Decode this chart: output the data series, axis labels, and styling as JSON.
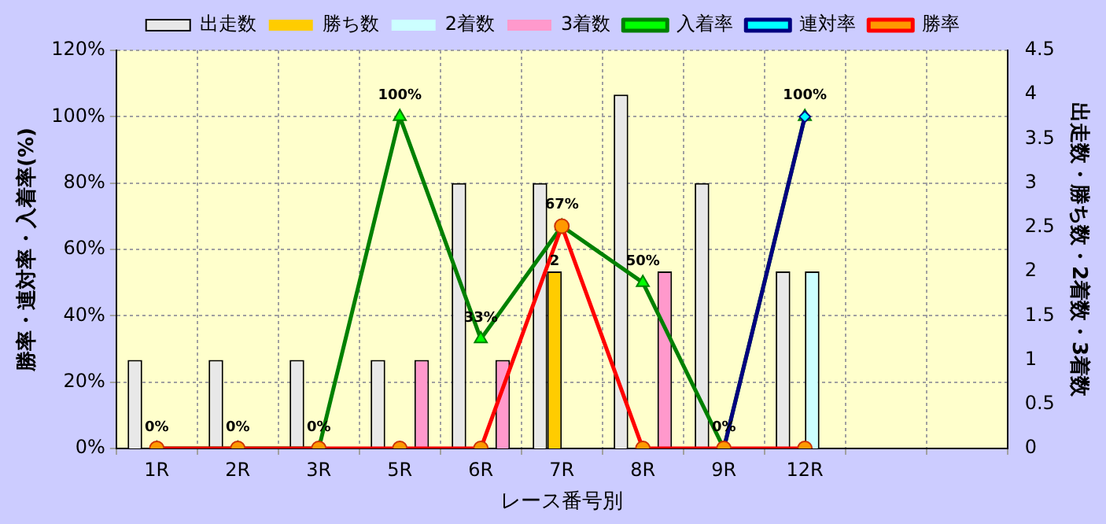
{
  "chart_data": {
    "type": "bar",
    "xlabel": "レース番号別",
    "ylabel": "勝率・連対率・入着率(%)",
    "y2label": "出走数・勝ち数・2着数・3着数",
    "categories": [
      "1R",
      "2R",
      "3R",
      "5R",
      "6R",
      "7R",
      "8R",
      "9R",
      "12R",
      null,
      null
    ],
    "ylim": [
      0,
      120
    ],
    "yticks": [
      {
        "value": 0,
        "label": "0%"
      },
      {
        "value": 20,
        "label": "20%"
      },
      {
        "value": 40,
        "label": "40%"
      },
      {
        "value": 60,
        "label": "60%"
      },
      {
        "value": 80,
        "label": "80%"
      },
      {
        "value": 100,
        "label": "100%"
      },
      {
        "value": 120,
        "label": "120%"
      }
    ],
    "y2lim": [
      0,
      4.5
    ],
    "y2ticks": [
      0,
      0.5,
      1,
      1.5,
      2,
      2.5,
      3,
      3.5,
      4,
      4.5
    ],
    "grid": true,
    "legend": "top",
    "series": [
      {
        "name": "出走数",
        "axis": "y2",
        "color": "#e8e8e8",
        "values": [
          1,
          1,
          1,
          1,
          3,
          3,
          4,
          3,
          2,
          null,
          null
        ]
      },
      {
        "name": "勝ち数",
        "axis": "y2",
        "color": "#ffcc00",
        "values": [
          0,
          0,
          0,
          0,
          0,
          2,
          0,
          0,
          0,
          null,
          null
        ],
        "value_labels": [
          null,
          null,
          null,
          null,
          null,
          "2",
          null,
          null,
          null,
          null,
          null
        ]
      },
      {
        "name": "2着数",
        "axis": "y2",
        "color": "#ccffff",
        "values": [
          0,
          0,
          0,
          0,
          0,
          0,
          0,
          0,
          2,
          null,
          null
        ]
      },
      {
        "name": "3着数",
        "axis": "y2",
        "color": "#ff99cc",
        "values": [
          0,
          0,
          0,
          1,
          1,
          0,
          2,
          0,
          0,
          null,
          null
        ]
      },
      {
        "name": "入着率",
        "type": "line",
        "color": "#008000",
        "marker": "triangle",
        "values": [
          0,
          0,
          0,
          100,
          33,
          67,
          50,
          0,
          100,
          null,
          null
        ],
        "value_labels": [
          "0%",
          "0%",
          "0%",
          "100%",
          "33%",
          "67%",
          "50%",
          "0%",
          "100%",
          null,
          null
        ]
      },
      {
        "name": "連対率",
        "type": "line",
        "color": "#000080",
        "marker": "diamond",
        "values": [
          null,
          null,
          null,
          null,
          null,
          null,
          null,
          0,
          100,
          null,
          null
        ]
      },
      {
        "name": "勝率",
        "type": "line",
        "color": "#ff0000",
        "marker": "circle",
        "values": [
          0,
          0,
          0,
          0,
          0,
          67,
          0,
          0,
          0,
          null,
          null
        ]
      }
    ]
  }
}
